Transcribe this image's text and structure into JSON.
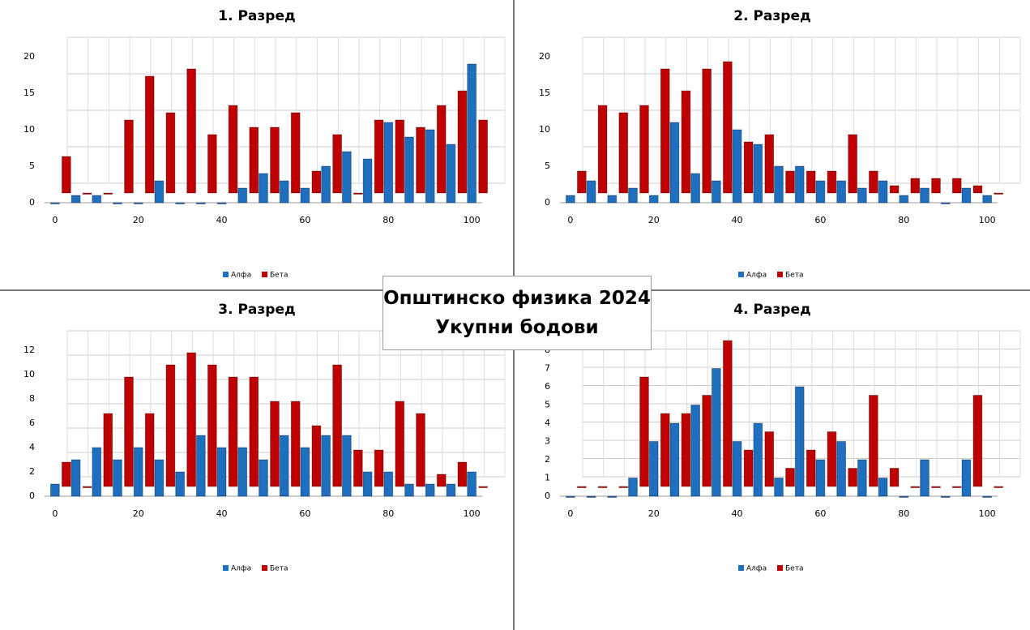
{
  "title": "Општинско физика 2024",
  "subtitle": "Укупни бодови",
  "chart_data": [
    {
      "type": "bar",
      "title": "1. Разред",
      "categories": [
        "0",
        null,
        null,
        null,
        "20",
        null,
        null,
        null,
        "40",
        null,
        null,
        null,
        "60",
        null,
        null,
        null,
        "80",
        null,
        null,
        null,
        "100"
      ],
      "series": [
        {
          "name": "Алфа",
          "color": "#1f6fc0",
          "values": [
            0,
            1,
            1,
            0,
            0,
            3,
            0,
            0,
            0,
            2,
            4,
            3,
            2,
            5,
            7,
            6,
            11,
            9,
            10,
            8,
            19
          ]
        },
        {
          "name": "Бета",
          "color": "#c00000",
          "values": [
            5,
            0,
            0,
            10,
            16,
            11,
            17,
            8,
            12,
            9,
            9,
            11,
            3,
            8,
            0,
            10,
            10,
            9,
            12,
            14,
            10
          ]
        }
      ],
      "ylim": [
        0,
        20
      ],
      "yticks": [
        0,
        5,
        10,
        15,
        20
      ],
      "grid": true
    },
    {
      "type": "bar",
      "title": "2. Разред",
      "categories": [
        "0",
        null,
        null,
        null,
        "20",
        null,
        null,
        null,
        "40",
        null,
        null,
        null,
        "60",
        null,
        null,
        null,
        "80",
        null,
        null,
        null,
        "100"
      ],
      "series": [
        {
          "name": "Алфа",
          "color": "#1f6fc0",
          "values": [
            1,
            3,
            1,
            2,
            1,
            11,
            4,
            3,
            10,
            8,
            5,
            5,
            3,
            3,
            2,
            3,
            1,
            2,
            0,
            2,
            1
          ]
        },
        {
          "name": "Бета",
          "color": "#c00000",
          "values": [
            3,
            12,
            11,
            12,
            17,
            14,
            17,
            18,
            7,
            8,
            3,
            3,
            3,
            8,
            3,
            1,
            2,
            2,
            2,
            1,
            0
          ]
        }
      ],
      "ylim": [
        0,
        20
      ],
      "yticks": [
        0,
        5,
        10,
        15,
        20
      ],
      "grid": true
    },
    {
      "type": "bar",
      "title": "3. Разред",
      "categories": [
        "0",
        null,
        null,
        null,
        "20",
        null,
        null,
        null,
        "40",
        null,
        null,
        null,
        "60",
        null,
        null,
        null,
        "80",
        null,
        null,
        null,
        "100"
      ],
      "series": [
        {
          "name": "Алфа",
          "color": "#1f6fc0",
          "values": [
            1,
            3,
            4,
            3,
            4,
            3,
            2,
            5,
            4,
            4,
            3,
            5,
            4,
            5,
            5,
            2,
            2,
            1,
            1,
            1,
            2
          ]
        },
        {
          "name": "Бета",
          "color": "#c00000",
          "values": [
            2,
            0,
            6,
            9,
            6,
            10,
            11,
            10,
            9,
            9,
            7,
            7,
            5,
            10,
            3,
            3,
            7,
            6,
            1,
            2,
            0
          ]
        }
      ],
      "ylim": [
        0,
        12
      ],
      "yticks": [
        0,
        2,
        4,
        6,
        8,
        10,
        12
      ],
      "grid": true
    },
    {
      "type": "bar",
      "title": "4. Разред",
      "categories": [
        "0",
        null,
        null,
        null,
        "20",
        null,
        null,
        null,
        "40",
        null,
        null,
        null,
        "60",
        null,
        null,
        null,
        "80",
        null,
        null,
        null,
        "100"
      ],
      "series": [
        {
          "name": "Алфа",
          "color": "#1f6fc0",
          "values": [
            0,
            0,
            0,
            1,
            3,
            4,
            5,
            7,
            3,
            4,
            1,
            6,
            2,
            3,
            2,
            1,
            0,
            2,
            0,
            2,
            0
          ]
        },
        {
          "name": "Бета",
          "color": "#c00000",
          "values": [
            0,
            0,
            0,
            6,
            4,
            4,
            5,
            8,
            2,
            3,
            1,
            2,
            3,
            1,
            5,
            1,
            0,
            0,
            0,
            5,
            0
          ]
        }
      ],
      "ylim": [
        0,
        8
      ],
      "yticks": [
        0,
        1,
        2,
        3,
        4,
        5,
        6,
        7,
        8
      ],
      "grid": true
    }
  ]
}
